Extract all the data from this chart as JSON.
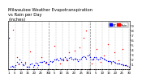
{
  "title": "Milwaukee Weather Evapotranspiration\nvs Rain per Day\n(Inches)",
  "legend_labels": [
    "ET",
    "Rain"
  ],
  "legend_colors": [
    "#0000ff",
    "#ff0000"
  ],
  "bg_color": "#ffffff",
  "grid_color": "#888888",
  "et_color": "#0000ff",
  "rain_color": "#ff0000",
  "dot_color": "#000000",
  "ylim": [
    0.0,
    1.0
  ],
  "et_values": [
    0.65,
    0.05,
    0.06,
    0.05,
    0.05,
    0.07,
    0.14,
    0.11,
    0.2,
    0.14,
    0.1,
    0.07,
    0.12,
    0.05,
    0.04,
    0.05,
    0.1,
    0.12,
    0.05,
    0.08,
    0.13,
    0.12,
    0.08,
    0.15,
    0.14,
    0.14,
    0.16,
    0.13,
    0.14,
    0.09,
    0.1,
    0.16,
    0.15,
    0.17,
    0.19,
    0.2,
    0.22,
    0.18,
    0.23,
    0.2,
    0.19,
    0.18,
    0.25,
    0.22,
    0.18,
    0.23,
    0.25,
    0.22,
    0.2,
    0.22,
    0.21,
    0.19,
    0.17,
    0.2,
    0.22,
    0.25,
    0.27,
    0.25,
    0.22,
    0.28,
    0.29,
    0.25,
    0.19,
    0.22,
    0.25,
    0.24,
    0.21,
    0.2,
    0.22,
    0.24,
    0.23,
    0.21,
    0.2,
    0.18,
    0.17,
    0.16,
    0.17,
    0.14,
    0.16,
    0.14,
    0.13,
    0.12,
    0.11,
    0.12,
    0.1,
    0.09,
    0.08,
    0.07,
    0.08,
    0.06,
    0.05
  ],
  "rain_values": [
    0.0,
    0.0,
    0.0,
    0.82,
    0.0,
    0.0,
    0.25,
    0.1,
    0.0,
    0.0,
    0.0,
    0.0,
    0.15,
    0.0,
    0.0,
    0.0,
    0.36,
    0.0,
    0.0,
    0.0,
    0.0,
    0.03,
    0.0,
    0.0,
    0.25,
    0.0,
    0.0,
    0.0,
    0.13,
    0.0,
    0.0,
    0.0,
    0.0,
    0.0,
    0.48,
    0.0,
    0.0,
    0.0,
    0.12,
    0.0,
    0.0,
    0.22,
    0.0,
    0.18,
    0.0,
    0.35,
    0.0,
    0.0,
    0.0,
    0.38,
    0.0,
    0.0,
    0.0,
    0.45,
    0.0,
    0.0,
    0.65,
    0.0,
    0.8,
    0.0,
    0.0,
    0.0,
    0.12,
    0.2,
    0.0,
    0.0,
    0.42,
    0.0,
    0.0,
    0.15,
    0.0,
    0.28,
    0.0,
    0.0,
    0.52,
    0.0,
    0.0,
    0.12,
    0.0,
    0.35,
    0.0,
    0.0,
    0.18,
    0.0,
    0.0,
    0.42,
    0.0,
    0.0,
    0.08,
    0.0,
    0.0
  ],
  "month_separators": [
    30,
    61,
    91
  ],
  "ytick_vals": [
    0.1,
    0.2,
    0.3,
    0.4,
    0.5,
    0.6,
    0.7,
    0.8,
    0.9
  ],
  "xtick_positions": [
    0,
    4,
    9,
    14,
    19,
    24,
    29,
    30,
    34,
    39,
    44,
    49,
    54,
    59,
    61,
    65,
    70,
    75,
    80,
    85,
    90
  ],
  "xtick_labels": [
    "1",
    "5",
    "10",
    "15",
    "20",
    "25",
    "30",
    "1",
    "5",
    "10",
    "15",
    "20",
    "25",
    "30",
    "1",
    "5",
    "10",
    "15",
    "20",
    "25",
    "30"
  ],
  "title_fontsize": 3.8,
  "tick_fontsize": 2.8,
  "legend_fontsize": 2.8
}
